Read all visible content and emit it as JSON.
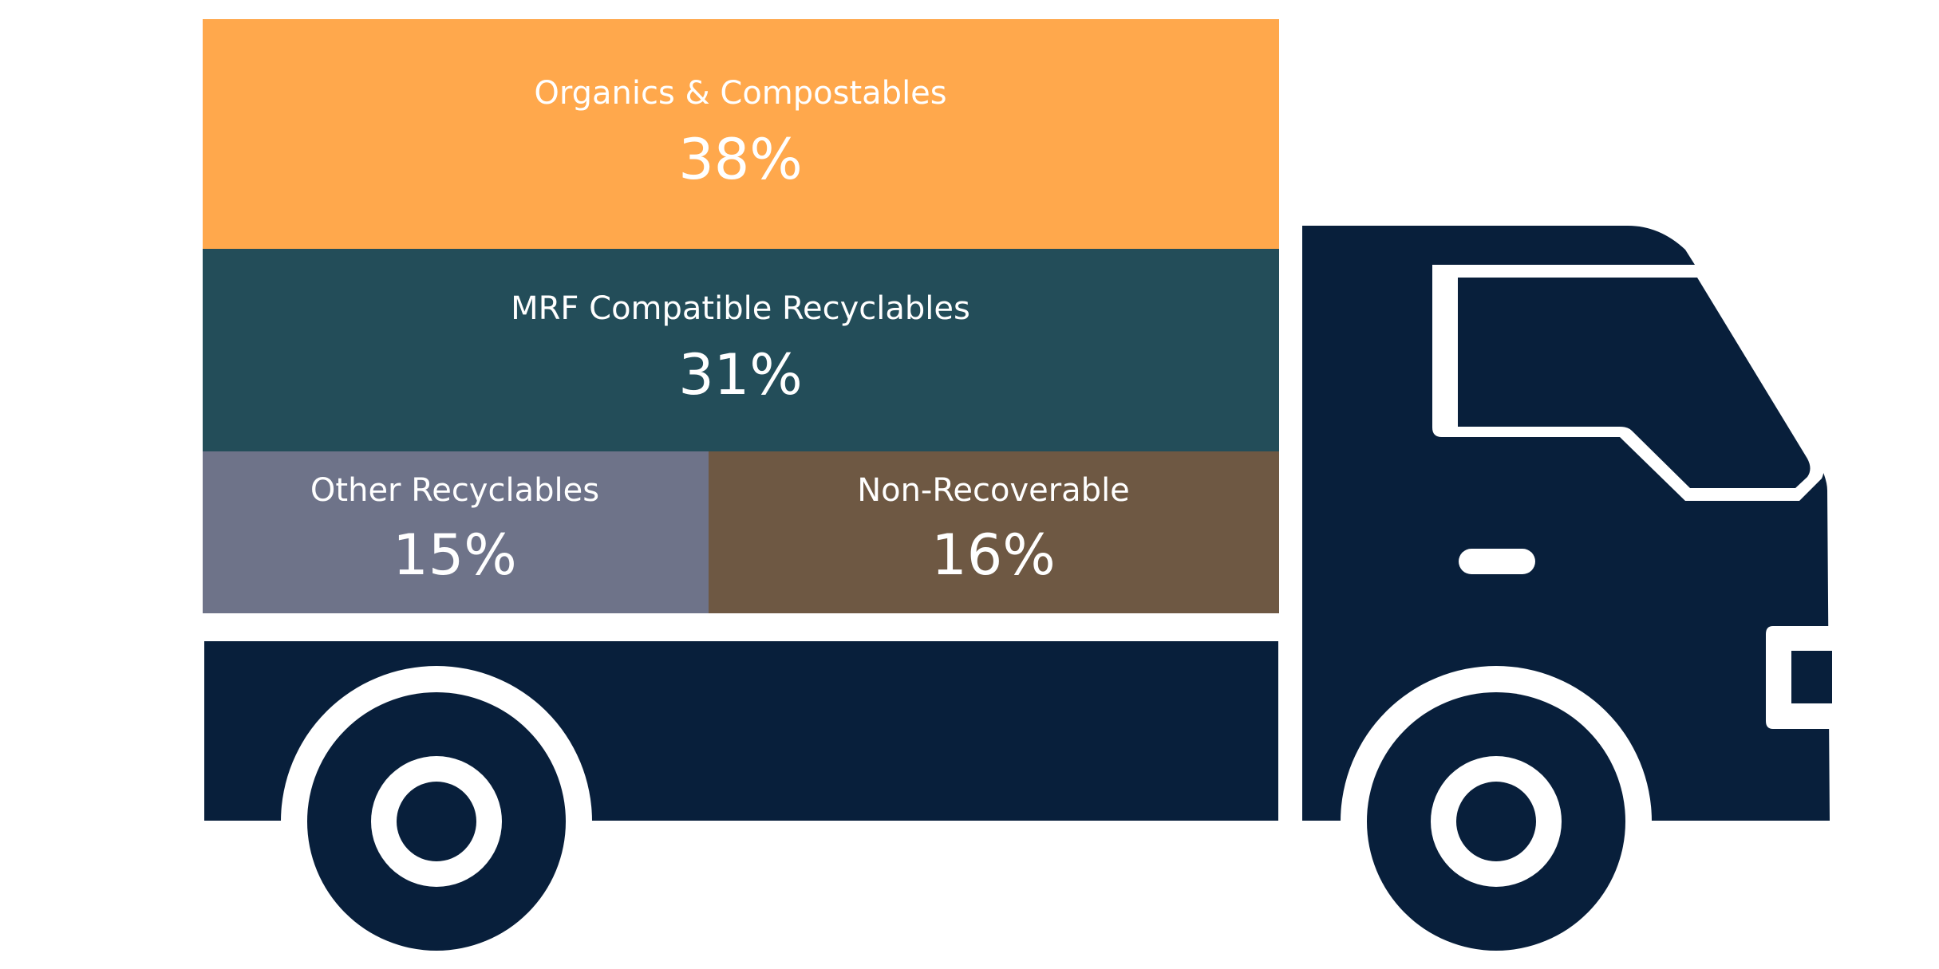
{
  "chart_data": {
    "type": "treemap",
    "title": "",
    "segments": [
      {
        "label": "Organics & Compostables",
        "value": 38,
        "value_label": "38%",
        "color": "#FFA84C"
      },
      {
        "label": "MRF Compatible Recyclables",
        "value": 31,
        "value_label": "31%",
        "color": "#234D59"
      },
      {
        "label": "Other Recyclables",
        "value": 15,
        "value_label": "15%",
        "color": "#6E7389"
      },
      {
        "label": "Non-Recoverable",
        "value": 16,
        "value_label": "16%",
        "color": "#6E5843"
      }
    ]
  },
  "truck": {
    "color": "#081F3B"
  }
}
